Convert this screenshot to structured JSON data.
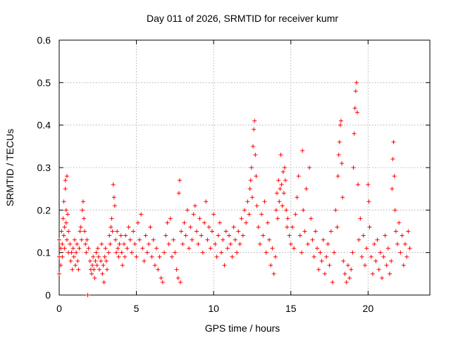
{
  "chart_data": {
    "type": "scatter",
    "title": "Day 011 of 2026, SRMTID for receiver kumr",
    "xlabel": "GPS time / hours",
    "ylabel": "SRMTID / TECUs",
    "xlim": [
      0,
      24
    ],
    "ylim": [
      0,
      0.6
    ],
    "xticks": [
      0,
      5,
      10,
      15,
      20
    ],
    "xtick_labels": [
      "0",
      "5",
      "10",
      "15",
      "20"
    ],
    "yticks": [
      0,
      0.1,
      0.2,
      0.3,
      0.4,
      0.5,
      0.6
    ],
    "ytick_labels": [
      "0",
      "0.1",
      "0.2",
      "0.3",
      "0.4",
      "0.5",
      "0.6"
    ],
    "grid": true,
    "marker": "plus",
    "series": [
      {
        "name": "SRMTID",
        "color": "#ff0000",
        "points": [
          [
            0.0,
            0.05
          ],
          [
            0.0,
            0.09
          ],
          [
            0.0,
            0.13
          ],
          [
            0.1,
            0.11
          ],
          [
            0.1,
            0.07
          ],
          [
            0.15,
            0.15
          ],
          [
            0.2,
            0.12
          ],
          [
            0.2,
            0.09
          ],
          [
            0.25,
            0.18
          ],
          [
            0.3,
            0.14
          ],
          [
            0.3,
            0.22
          ],
          [
            0.35,
            0.16
          ],
          [
            0.35,
            0.11
          ],
          [
            0.4,
            0.25
          ],
          [
            0.4,
            0.27
          ],
          [
            0.45,
            0.2
          ],
          [
            0.45,
            0.17
          ],
          [
            0.5,
            0.28
          ],
          [
            0.5,
            0.13
          ],
          [
            0.55,
            0.19
          ],
          [
            0.6,
            0.15
          ],
          [
            0.6,
            0.1
          ],
          [
            0.7,
            0.12
          ],
          [
            0.75,
            0.08
          ],
          [
            0.8,
            0.1
          ],
          [
            0.85,
            0.06
          ],
          [
            0.9,
            0.11
          ],
          [
            0.95,
            0.09
          ],
          [
            1.0,
            0.13
          ],
          [
            1.05,
            0.07
          ],
          [
            1.1,
            0.1
          ],
          [
            1.15,
            0.12
          ],
          [
            1.2,
            0.08
          ],
          [
            1.25,
            0.06
          ],
          [
            1.3,
            0.11
          ],
          [
            1.35,
            0.15
          ],
          [
            1.4,
            0.16
          ],
          [
            1.45,
            0.13
          ],
          [
            1.5,
            0.2
          ],
          [
            1.55,
            0.22
          ],
          [
            1.6,
            0.18
          ],
          [
            1.65,
            0.15
          ],
          [
            1.7,
            0.12
          ],
          [
            1.75,
            0.1
          ],
          [
            1.8,
            0.13
          ],
          [
            1.85,
            0.0
          ],
          [
            1.9,
            0.11
          ],
          [
            2.0,
            0.08
          ],
          [
            2.05,
            0.06
          ],
          [
            2.1,
            0.05
          ],
          [
            2.15,
            0.07
          ],
          [
            2.2,
            0.09
          ],
          [
            2.25,
            0.06
          ],
          [
            2.3,
            0.04
          ],
          [
            2.35,
            0.08
          ],
          [
            2.4,
            0.1
          ],
          [
            2.45,
            0.07
          ],
          [
            2.5,
            0.11
          ],
          [
            2.55,
            0.09
          ],
          [
            2.6,
            0.06
          ],
          [
            2.7,
            0.08
          ],
          [
            2.75,
            0.12
          ],
          [
            2.8,
            0.05
          ],
          [
            2.85,
            0.07
          ],
          [
            2.9,
            0.03
          ],
          [
            2.95,
            0.09
          ],
          [
            3.0,
            0.11
          ],
          [
            3.05,
            0.08
          ],
          [
            3.1,
            0.06
          ],
          [
            3.2,
            0.1
          ],
          [
            3.25,
            0.14
          ],
          [
            3.3,
            0.12
          ],
          [
            3.35,
            0.16
          ],
          [
            3.4,
            0.18
          ],
          [
            3.45,
            0.15
          ],
          [
            3.5,
            0.26
          ],
          [
            3.55,
            0.23
          ],
          [
            3.6,
            0.21
          ],
          [
            3.65,
            0.13
          ],
          [
            3.7,
            0.1
          ],
          [
            3.75,
            0.15
          ],
          [
            3.8,
            0.11
          ],
          [
            3.85,
            0.09
          ],
          [
            3.9,
            0.12
          ],
          [
            4.0,
            0.14
          ],
          [
            4.05,
            0.1
          ],
          [
            4.1,
            0.07
          ],
          [
            4.2,
            0.12
          ],
          [
            4.25,
            0.09
          ],
          [
            4.3,
            0.14
          ],
          [
            4.4,
            0.11
          ],
          [
            4.5,
            0.16
          ],
          [
            4.6,
            0.13
          ],
          [
            4.7,
            0.1
          ],
          [
            4.8,
            0.15
          ],
          [
            4.9,
            0.12
          ],
          [
            5.0,
            0.09
          ],
          [
            5.1,
            0.17
          ],
          [
            5.2,
            0.13
          ],
          [
            5.3,
            0.19
          ],
          [
            5.4,
            0.11
          ],
          [
            5.5,
            0.08
          ],
          [
            5.6,
            0.14
          ],
          [
            5.7,
            0.1
          ],
          [
            5.8,
            0.12
          ],
          [
            5.9,
            0.16
          ],
          [
            6.0,
            0.09
          ],
          [
            6.1,
            0.13
          ],
          [
            6.2,
            0.07
          ],
          [
            6.3,
            0.11
          ],
          [
            6.4,
            0.06
          ],
          [
            6.5,
            0.09
          ],
          [
            6.6,
            0.04
          ],
          [
            6.7,
            0.03
          ],
          [
            6.8,
            0.1
          ],
          [
            6.9,
            0.14
          ],
          [
            7.0,
            0.17
          ],
          [
            7.1,
            0.12
          ],
          [
            7.2,
            0.18
          ],
          [
            7.3,
            0.09
          ],
          [
            7.4,
            0.13
          ],
          [
            7.5,
            0.1
          ],
          [
            7.6,
            0.06
          ],
          [
            7.7,
            0.04
          ],
          [
            7.75,
            0.24
          ],
          [
            7.8,
            0.27
          ],
          [
            7.85,
            0.03
          ],
          [
            7.9,
            0.15
          ],
          [
            8.0,
            0.12
          ],
          [
            8.1,
            0.17
          ],
          [
            8.2,
            0.14
          ],
          [
            8.3,
            0.2
          ],
          [
            8.4,
            0.11
          ],
          [
            8.5,
            0.16
          ],
          [
            8.6,
            0.13
          ],
          [
            8.7,
            0.19
          ],
          [
            8.8,
            0.21
          ],
          [
            8.9,
            0.15
          ],
          [
            9.0,
            0.12
          ],
          [
            9.1,
            0.18
          ],
          [
            9.2,
            0.14
          ],
          [
            9.3,
            0.1
          ],
          [
            9.4,
            0.17
          ],
          [
            9.5,
            0.22
          ],
          [
            9.6,
            0.13
          ],
          [
            9.7,
            0.16
          ],
          [
            9.8,
            0.11
          ],
          [
            9.9,
            0.15
          ],
          [
            10.0,
            0.19
          ],
          [
            10.1,
            0.12
          ],
          [
            10.2,
            0.09
          ],
          [
            10.3,
            0.14
          ],
          [
            10.4,
            0.17
          ],
          [
            10.5,
            0.1
          ],
          [
            10.6,
            0.13
          ],
          [
            10.7,
            0.07
          ],
          [
            10.8,
            0.15
          ],
          [
            10.9,
            0.11
          ],
          [
            11.0,
            0.14
          ],
          [
            11.1,
            0.12
          ],
          [
            11.2,
            0.09
          ],
          [
            11.3,
            0.16
          ],
          [
            11.4,
            0.13
          ],
          [
            11.5,
            0.1
          ],
          [
            11.6,
            0.15
          ],
          [
            11.7,
            0.12
          ],
          [
            11.8,
            0.18
          ],
          [
            11.9,
            0.14
          ],
          [
            12.0,
            0.2
          ],
          [
            12.1,
            0.17
          ],
          [
            12.2,
            0.22
          ],
          [
            12.3,
            0.19
          ],
          [
            12.35,
            0.25
          ],
          [
            12.4,
            0.27
          ],
          [
            12.45,
            0.3
          ],
          [
            12.5,
            0.23
          ],
          [
            12.55,
            0.35
          ],
          [
            12.6,
            0.39
          ],
          [
            12.65,
            0.41
          ],
          [
            12.7,
            0.33
          ],
          [
            12.75,
            0.28
          ],
          [
            12.8,
            0.21
          ],
          [
            12.9,
            0.16
          ],
          [
            13.0,
            0.12
          ],
          [
            13.1,
            0.19
          ],
          [
            13.2,
            0.14
          ],
          [
            13.3,
            0.22
          ],
          [
            13.4,
            0.1
          ],
          [
            13.5,
            0.17
          ],
          [
            13.6,
            0.13
          ],
          [
            13.7,
            0.07
          ],
          [
            13.8,
            0.11
          ],
          [
            13.9,
            0.05
          ],
          [
            14.0,
            0.09
          ],
          [
            14.05,
            0.2
          ],
          [
            14.1,
            0.24
          ],
          [
            14.15,
            0.18
          ],
          [
            14.2,
            0.27
          ],
          [
            14.25,
            0.22
          ],
          [
            14.3,
            0.25
          ],
          [
            14.35,
            0.33
          ],
          [
            14.4,
            0.26
          ],
          [
            14.45,
            0.21
          ],
          [
            14.5,
            0.29
          ],
          [
            14.55,
            0.24
          ],
          [
            14.6,
            0.3
          ],
          [
            14.65,
            0.27
          ],
          [
            14.7,
            0.2
          ],
          [
            14.75,
            0.16
          ],
          [
            14.8,
            0.18
          ],
          [
            14.9,
            0.14
          ],
          [
            15.0,
            0.12
          ],
          [
            15.1,
            0.16
          ],
          [
            15.2,
            0.11
          ],
          [
            15.3,
            0.19
          ],
          [
            15.4,
            0.23
          ],
          [
            15.5,
            0.28
          ],
          [
            15.6,
            0.14
          ],
          [
            15.7,
            0.1
          ],
          [
            15.75,
            0.34
          ],
          [
            15.8,
            0.2
          ],
          [
            15.9,
            0.15
          ],
          [
            16.0,
            0.25
          ],
          [
            16.1,
            0.12
          ],
          [
            16.2,
            0.3
          ],
          [
            16.3,
            0.18
          ],
          [
            16.4,
            0.13
          ],
          [
            16.5,
            0.09
          ],
          [
            16.6,
            0.15
          ],
          [
            16.7,
            0.11
          ],
          [
            16.8,
            0.06
          ],
          [
            16.9,
            0.1
          ],
          [
            17.0,
            0.08
          ],
          [
            17.1,
            0.13
          ],
          [
            17.2,
            0.05
          ],
          [
            17.3,
            0.09
          ],
          [
            17.4,
            0.12
          ],
          [
            17.5,
            0.07
          ],
          [
            17.6,
            0.15
          ],
          [
            17.7,
            0.03
          ],
          [
            17.8,
            0.1
          ],
          [
            17.9,
            0.2
          ],
          [
            18.0,
            0.16
          ],
          [
            18.05,
            0.28
          ],
          [
            18.1,
            0.33
          ],
          [
            18.15,
            0.36
          ],
          [
            18.2,
            0.4
          ],
          [
            18.25,
            0.41
          ],
          [
            18.3,
            0.31
          ],
          [
            18.35,
            0.23
          ],
          [
            18.4,
            0.08
          ],
          [
            18.5,
            0.05
          ],
          [
            18.6,
            0.03
          ],
          [
            18.7,
            0.07
          ],
          [
            18.8,
            0.04
          ],
          [
            18.9,
            0.06
          ],
          [
            19.0,
            0.1
          ],
          [
            19.05,
            0.3
          ],
          [
            19.1,
            0.38
          ],
          [
            19.15,
            0.44
          ],
          [
            19.2,
            0.48
          ],
          [
            19.25,
            0.5
          ],
          [
            19.3,
            0.43
          ],
          [
            19.35,
            0.26
          ],
          [
            19.4,
            0.13
          ],
          [
            19.5,
            0.18
          ],
          [
            19.6,
            0.09
          ],
          [
            19.7,
            0.14
          ],
          [
            19.8,
            0.07
          ],
          [
            19.9,
            0.11
          ],
          [
            20.0,
            0.26
          ],
          [
            20.05,
            0.22
          ],
          [
            20.1,
            0.16
          ],
          [
            20.2,
            0.09
          ],
          [
            20.3,
            0.05
          ],
          [
            20.4,
            0.12
          ],
          [
            20.5,
            0.08
          ],
          [
            20.6,
            0.13
          ],
          [
            20.7,
            0.06
          ],
          [
            20.8,
            0.1
          ],
          [
            20.9,
            0.04
          ],
          [
            21.0,
            0.09
          ],
          [
            21.1,
            0.14
          ],
          [
            21.2,
            0.07
          ],
          [
            21.3,
            0.11
          ],
          [
            21.4,
            0.05
          ],
          [
            21.5,
            0.08
          ],
          [
            21.55,
            0.25
          ],
          [
            21.6,
            0.32
          ],
          [
            21.65,
            0.36
          ],
          [
            21.7,
            0.28
          ],
          [
            21.75,
            0.2
          ],
          [
            21.8,
            0.15
          ],
          [
            21.9,
            0.12
          ],
          [
            22.0,
            0.17
          ],
          [
            22.1,
            0.1
          ],
          [
            22.2,
            0.14
          ],
          [
            22.3,
            0.07
          ],
          [
            22.4,
            0.12
          ],
          [
            22.5,
            0.09
          ],
          [
            22.6,
            0.15
          ],
          [
            22.7,
            0.11
          ]
        ]
      }
    ]
  }
}
